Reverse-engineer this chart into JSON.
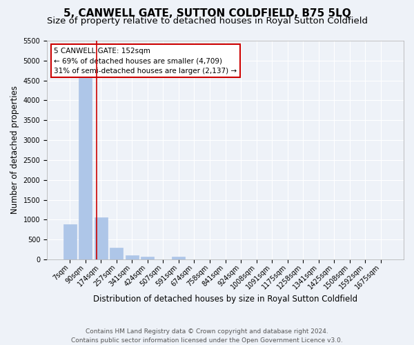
{
  "title": "5, CANWELL GATE, SUTTON COLDFIELD, B75 5LQ",
  "subtitle": "Size of property relative to detached houses in Royal Sutton Coldfield",
  "xlabel": "Distribution of detached houses by size in Royal Sutton Coldfield",
  "ylabel": "Number of detached properties",
  "categories": [
    "7sqm",
    "90sqm",
    "174sqm",
    "257sqm",
    "341sqm",
    "424sqm",
    "507sqm",
    "591sqm",
    "674sqm",
    "758sqm",
    "841sqm",
    "924sqm",
    "1008sqm",
    "1091sqm",
    "1175sqm",
    "1258sqm",
    "1341sqm",
    "1425sqm",
    "1508sqm",
    "1592sqm",
    "1675sqm"
  ],
  "values": [
    880,
    4560,
    1060,
    295,
    95,
    65,
    0,
    65,
    0,
    0,
    0,
    0,
    0,
    0,
    0,
    0,
    0,
    0,
    0,
    0,
    0
  ],
  "bar_color": "#aec6e8",
  "bar_edge_color": "#aec6e8",
  "annotation_title": "5 CANWELL GATE: 152sqm",
  "annotation_line1": "← 69% of detached houses are smaller (4,709)",
  "annotation_line2": "31% of semi-detached houses are larger (2,137) →",
  "annotation_box_color": "#ffffff",
  "annotation_box_edge_color": "#cc0000",
  "ylim": [
    0,
    5500
  ],
  "yticks": [
    0,
    500,
    1000,
    1500,
    2000,
    2500,
    3000,
    3500,
    4000,
    4500,
    5000,
    5500
  ],
  "footer1": "Contains HM Land Registry data © Crown copyright and database right 2024.",
  "footer2": "Contains public sector information licensed under the Open Government Licence v3.0.",
  "bg_color": "#eef2f8",
  "plot_bg_color": "#eef2f8",
  "grid_color": "#ffffff",
  "title_fontsize": 11,
  "subtitle_fontsize": 9.5,
  "label_fontsize": 8.5,
  "tick_fontsize": 7,
  "footer_fontsize": 6.5
}
